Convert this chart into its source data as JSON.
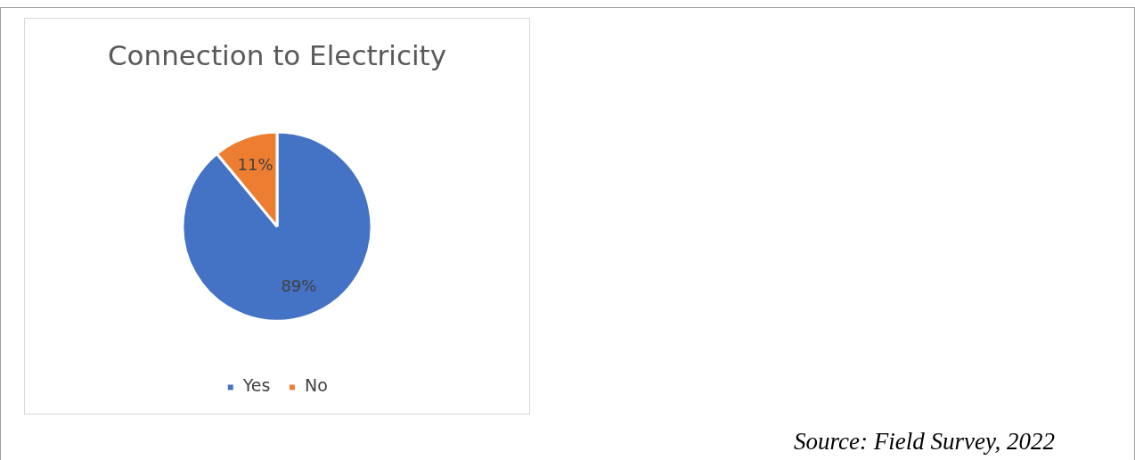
{
  "chart_data": {
    "type": "pie",
    "title": "Connection to Electricity",
    "categories": [
      "Yes",
      "No"
    ],
    "values": [
      89,
      11
    ],
    "colors": [
      "#4472c4",
      "#ed7d31"
    ],
    "value_labels": [
      "89%",
      "11%"
    ],
    "legend": "bottom",
    "annotations": [
      "Source: Field Survey, 2022"
    ]
  }
}
